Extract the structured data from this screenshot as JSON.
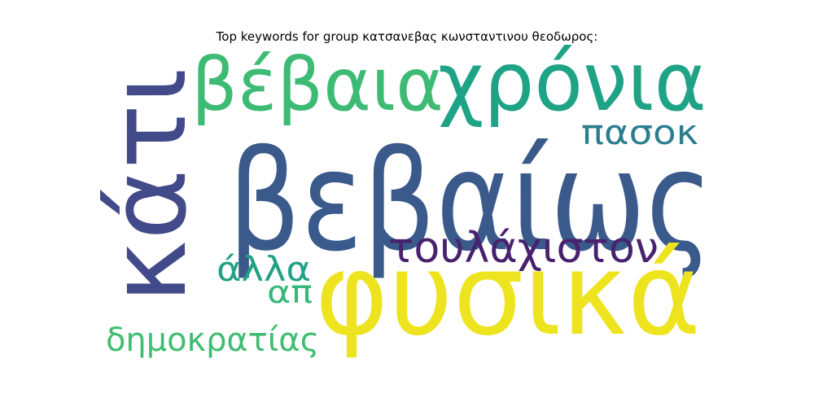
{
  "title": "Top keywords for group κατσανεβας κωνσταντινου θεοδωρος:",
  "words": [
    {
      "text": "βεβαίως",
      "color": "#3b5a8c"
    },
    {
      "text": "φυσικά",
      "color": "#ede41f"
    },
    {
      "text": "κάτι",
      "color": "#424a8a"
    },
    {
      "text": "χρόνια",
      "color": "#1fa386"
    },
    {
      "text": "βέβαια",
      "color": "#3dbb74"
    },
    {
      "text": "τουλάχιστον",
      "color": "#48226e"
    },
    {
      "text": "πασοκ",
      "color": "#2a7e8e"
    },
    {
      "text": "άλλα",
      "color": "#22a285"
    },
    {
      "text": "απ",
      "color": "#36b87a"
    },
    {
      "text": "δημοκρατίας",
      "color": "#40bd72"
    }
  ]
}
